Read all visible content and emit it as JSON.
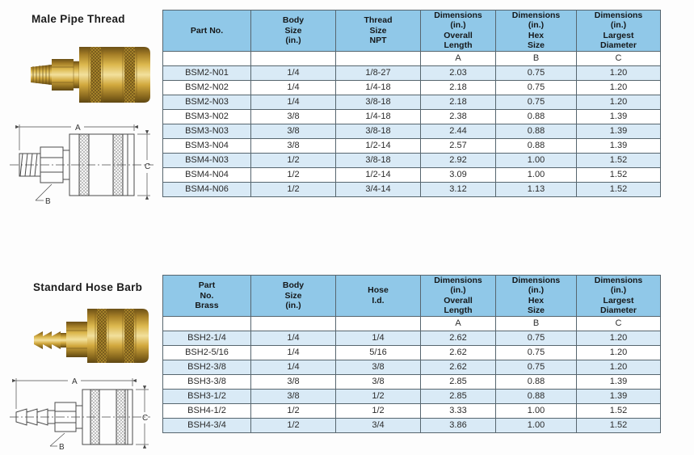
{
  "colors": {
    "header_bg": "#90c8e8",
    "row_alt_bg": "#d9eaf6",
    "row_bg": "#ffffff",
    "border": "#57666f",
    "brass_dark": "#6b4f16",
    "brass_mid": "#d9b44a",
    "brass_light": "#f0dd9a"
  },
  "sections": [
    {
      "title": "Male Pipe Thread",
      "diagram_labels": {
        "a": "A",
        "b": "B",
        "c": "C"
      },
      "table": {
        "headers": [
          "Part No.",
          "Body\nSize\n(in.)",
          "Thread\nSize\nNPT",
          "Dimensions\n(in.)\nOverall\nLength",
          "Dimensions\n(in.)\nHex\nSize",
          "Dimensions\n(in.)\nLargest\nDiameter"
        ],
        "subheaders": [
          "",
          "",
          "",
          "A",
          "B",
          "C"
        ],
        "rows": [
          [
            "BSM2-N01",
            "1/4",
            "1/8-27",
            "2.03",
            "0.75",
            "1.20"
          ],
          [
            "BSM2-N02",
            "1/4",
            "1/4-18",
            "2.18",
            "0.75",
            "1.20"
          ],
          [
            "BSM2-N03",
            "1/4",
            "3/8-18",
            "2.18",
            "0.75",
            "1.20"
          ],
          [
            "BSM3-N02",
            "3/8",
            "1/4-18",
            "2.38",
            "0.88",
            "1.39"
          ],
          [
            "BSM3-N03",
            "3/8",
            "3/8-18",
            "2.44",
            "0.88",
            "1.39"
          ],
          [
            "BSM3-N04",
            "3/8",
            "1/2-14",
            "2.57",
            "0.88",
            "1.39"
          ],
          [
            "BSM4-N03",
            "1/2",
            "3/8-18",
            "2.92",
            "1.00",
            "1.52"
          ],
          [
            "BSM4-N04",
            "1/2",
            "1/2-14",
            "3.09",
            "1.00",
            "1.52"
          ],
          [
            "BSM4-N06",
            "1/2",
            "3/4-14",
            "3.12",
            "1.13",
            "1.52"
          ]
        ]
      }
    },
    {
      "title": "Standard Hose Barb",
      "diagram_labels": {
        "a": "A",
        "b": "B",
        "c": "C"
      },
      "table": {
        "headers": [
          "Part\nNo.\nBrass",
          "Body\nSize\n(in.)",
          "Hose\nI.d.",
          "Dimensions\n(in.)\nOverall\nLength",
          "Dimensions\n(in.)\nHex\nSize",
          "Dimensions\n(in.)\nLargest\nDiameter"
        ],
        "subheaders": [
          "",
          "",
          "",
          "A",
          "B",
          "C"
        ],
        "rows": [
          [
            "BSH2-1/4",
            "1/4",
            "1/4",
            "2.62",
            "0.75",
            "1.20"
          ],
          [
            "BSH2-5/16",
            "1/4",
            "5/16",
            "2.62",
            "0.75",
            "1.20"
          ],
          [
            "BSH2-3/8",
            "1/4",
            "3/8",
            "2.62",
            "0.75",
            "1.20"
          ],
          [
            "BSH3-3/8",
            "3/8",
            "3/8",
            "2.85",
            "0.88",
            "1.39"
          ],
          [
            "BSH3-1/2",
            "3/8",
            "1/2",
            "2.85",
            "0.88",
            "1.39"
          ],
          [
            "BSH4-1/2",
            "1/2",
            "1/2",
            "3.33",
            "1.00",
            "1.52"
          ],
          [
            "BSH4-3/4",
            "1/2",
            "3/4",
            "3.86",
            "1.00",
            "1.52"
          ]
        ]
      }
    }
  ]
}
